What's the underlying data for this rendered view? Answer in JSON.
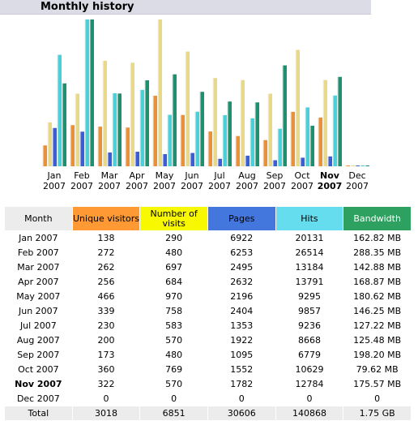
{
  "header": {
    "title": "Monthly history"
  },
  "chart": {
    "current": 10,
    "months": [
      {
        "month": "Jan",
        "year": "2007"
      },
      {
        "month": "Feb",
        "year": "2007"
      },
      {
        "month": "Mar",
        "year": "2007"
      },
      {
        "month": "Apr",
        "year": "2007"
      },
      {
        "month": "May",
        "year": "2007"
      },
      {
        "month": "Jun",
        "year": "2007"
      },
      {
        "month": "Jul",
        "year": "2007"
      },
      {
        "month": "Aug",
        "year": "2007"
      },
      {
        "month": "Sep",
        "year": "2007"
      },
      {
        "month": "Oct",
        "year": "2007"
      },
      {
        "month": "Nov",
        "year": "2007"
      },
      {
        "month": "Dec",
        "year": "2007"
      }
    ]
  },
  "table": {
    "columns": [
      {
        "label": "Month",
        "color": "#ececec"
      },
      {
        "label": "Unique visitors",
        "color": "#ff9933",
        "bar_color": "#e8903a"
      },
      {
        "label": "Number of visits",
        "color": "#f8f800",
        "bar_color": "#e8d88a"
      },
      {
        "label": "Pages",
        "color": "#4477dd",
        "bar_color": "#3c5ed0"
      },
      {
        "label": "Hits",
        "color": "#66ddee",
        "bar_color": "#4ccfd8"
      },
      {
        "label": "Bandwidth",
        "color": "#2ea060",
        "bar_color": "#1e9070"
      }
    ],
    "rows": [
      [
        "Jan 2007",
        138,
        290,
        6922,
        20131,
        "162.82 MB"
      ],
      [
        "Feb 2007",
        272,
        480,
        6253,
        26514,
        "288.35 MB"
      ],
      [
        "Mar 2007",
        262,
        697,
        2495,
        13184,
        "142.88 MB"
      ],
      [
        "Apr 2007",
        256,
        684,
        2632,
        13791,
        "168.87 MB"
      ],
      [
        "May 2007",
        466,
        970,
        2196,
        9295,
        "180.62 MB"
      ],
      [
        "Jun 2007",
        339,
        758,
        2404,
        9857,
        "146.25 MB"
      ],
      [
        "Jul 2007",
        230,
        583,
        1353,
        9236,
        "127.22 MB"
      ],
      [
        "Aug 2007",
        200,
        570,
        1922,
        8668,
        "125.48 MB"
      ],
      [
        "Sep 2007",
        173,
        480,
        1095,
        6779,
        "198.20 MB"
      ],
      [
        "Oct 2007",
        360,
        769,
        1552,
        10629,
        "79.62 MB"
      ],
      [
        "Nov 2007",
        322,
        570,
        1782,
        12784,
        "175.57 MB"
      ],
      [
        "Dec 2007",
        0,
        0,
        0,
        0,
        "0"
      ]
    ],
    "total": [
      "Total",
      3018,
      6851,
      30606,
      140868,
      "1.75 GB"
    ]
  }
}
